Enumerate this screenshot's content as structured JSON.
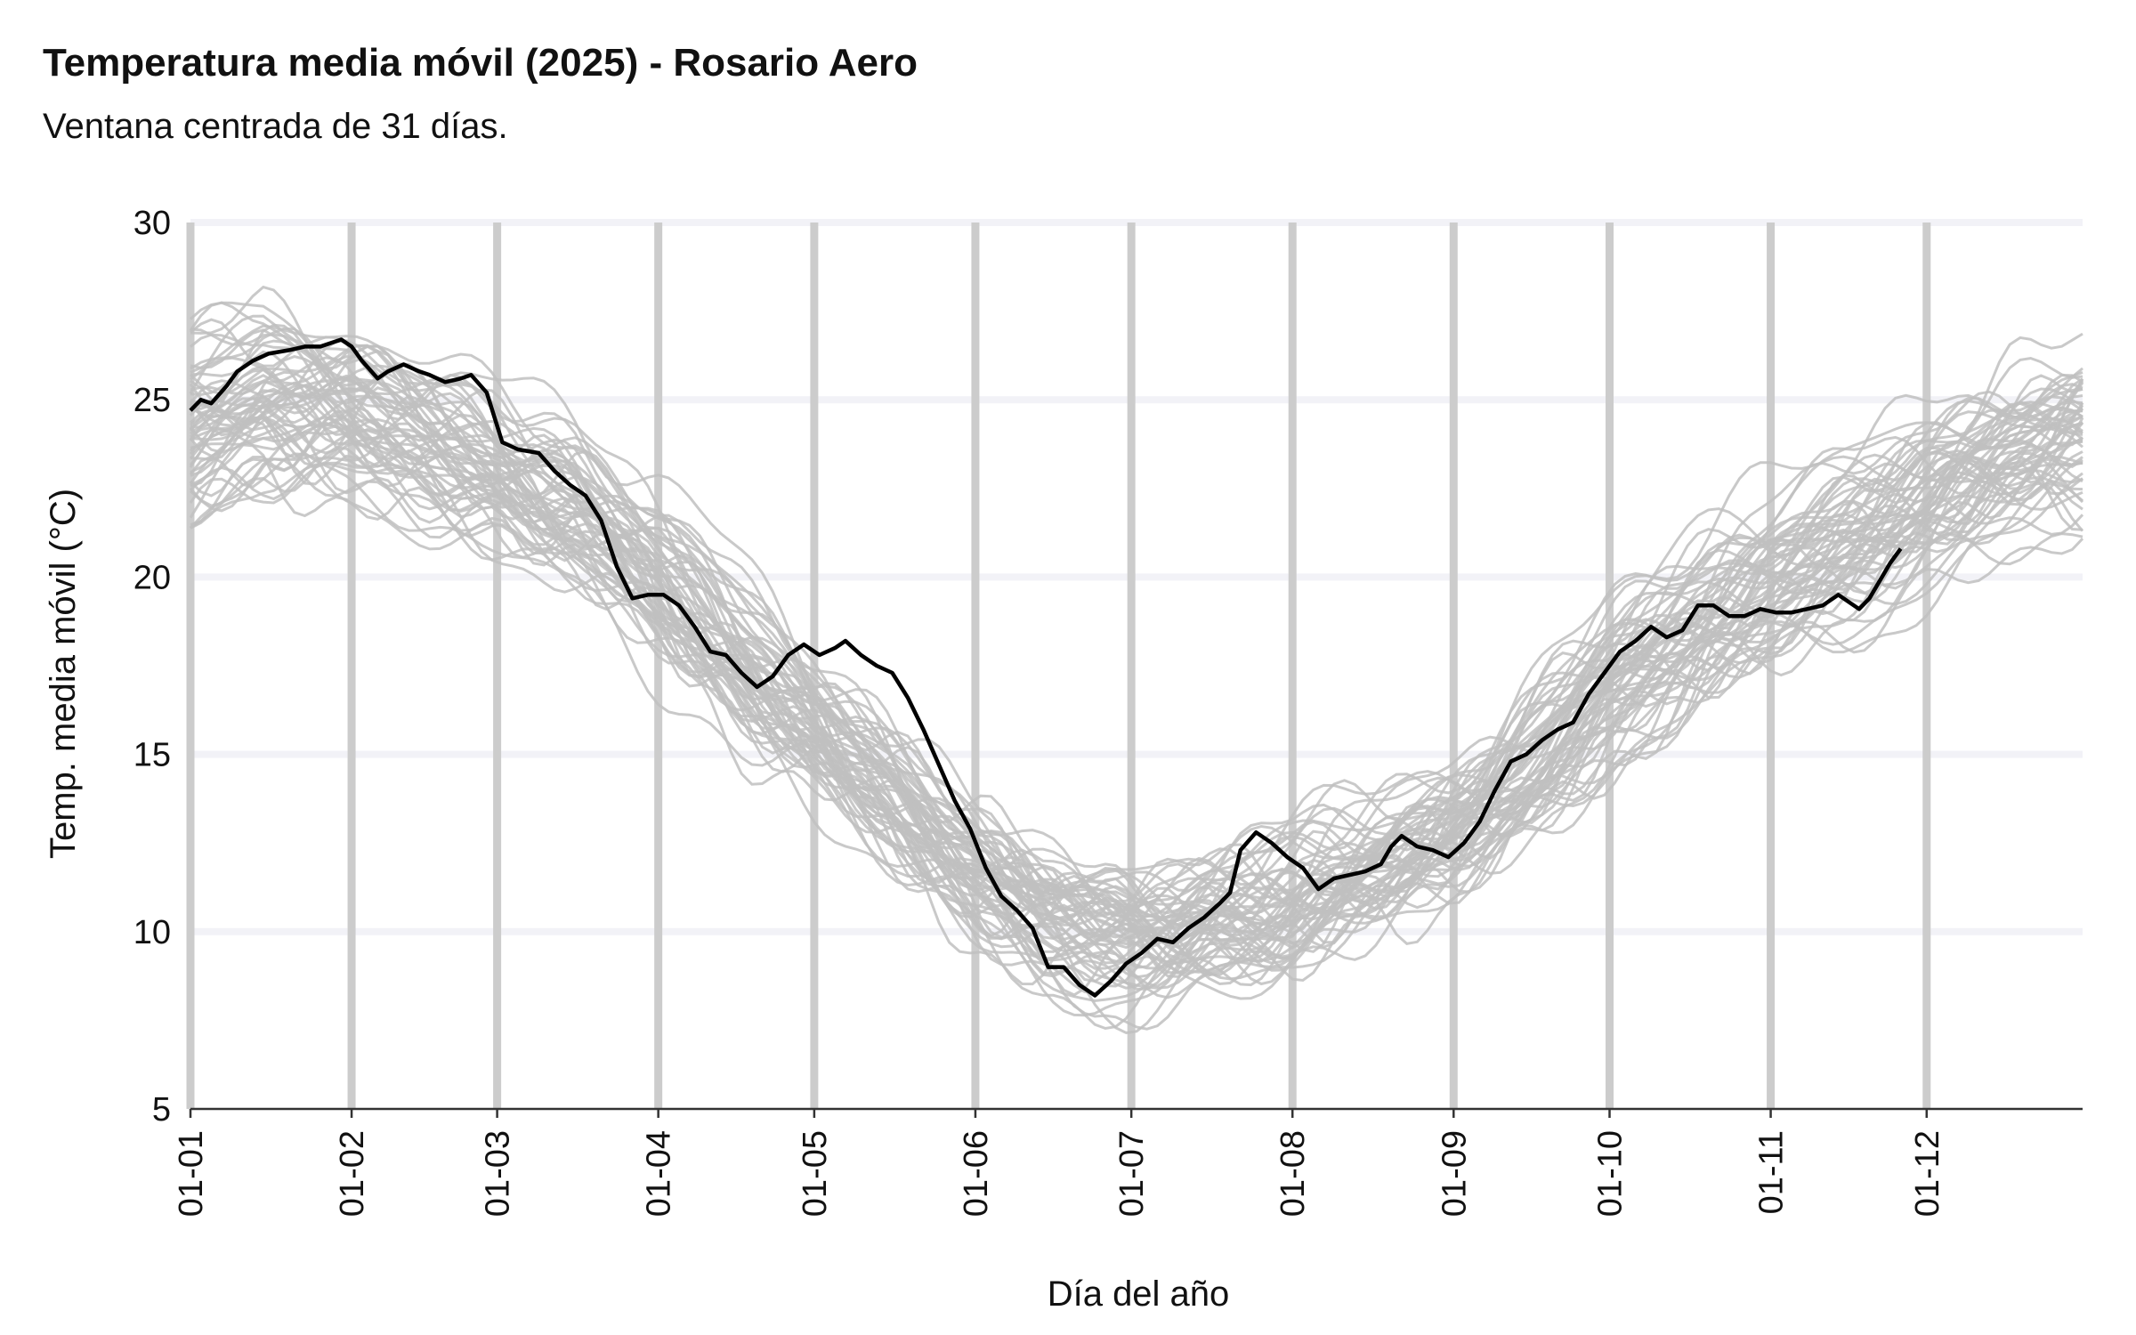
{
  "chart_data": {
    "type": "line",
    "title": "Temperatura media móvil (2025) - Rosario Aero",
    "subtitle": "Ventana centrada de 31 días.",
    "xlabel": "Día del año",
    "ylabel": "Temp. media móvil (°C)",
    "ylim": [
      5,
      30
    ],
    "yticks": [
      5,
      10,
      15,
      20,
      25,
      30
    ],
    "xlim": [
      1,
      365
    ],
    "x_ticks": [
      {
        "label": "01-01",
        "day": 1
      },
      {
        "label": "01-02",
        "day": 32
      },
      {
        "label": "01-03",
        "day": 60
      },
      {
        "label": "01-04",
        "day": 91
      },
      {
        "label": "01-05",
        "day": 121
      },
      {
        "label": "01-06",
        "day": 152
      },
      {
        "label": "01-07",
        "day": 182
      },
      {
        "label": "01-08",
        "day": 213
      },
      {
        "label": "01-09",
        "day": 244
      },
      {
        "label": "01-10",
        "day": 274
      },
      {
        "label": "01-11",
        "day": 305
      },
      {
        "label": "01-12",
        "day": 335
      }
    ],
    "grid": true,
    "colors": {
      "history": "#c0c0c0",
      "current": "#000000",
      "grid_major_x": "#cccccc",
      "grid_y": "#f2f2f7",
      "axis": "#333333"
    },
    "history_climatology": {
      "days": [
        1,
        15,
        32,
        45,
        60,
        75,
        91,
        105,
        121,
        135,
        152,
        165,
        175,
        182,
        190,
        200,
        213,
        225,
        244,
        260,
        274,
        290,
        305,
        320,
        335,
        350,
        365
      ],
      "values": [
        24.0,
        24.8,
        24.4,
        23.7,
        22.9,
        21.7,
        19.8,
        18.0,
        15.8,
        14.0,
        11.6,
        10.3,
        9.7,
        9.6,
        9.7,
        10.1,
        10.7,
        11.6,
        13.1,
        14.8,
        16.6,
        18.3,
        19.6,
        20.8,
        22.0,
        23.2,
        24.0
      ],
      "year_count": 60
    },
    "series": [
      {
        "values": [
          [
            1,
            24.7
          ],
          [
            3,
            25.0
          ],
          [
            5,
            24.9
          ],
          [
            8,
            25.4
          ],
          [
            10,
            25.8
          ],
          [
            13,
            26.1
          ],
          [
            16,
            26.3
          ],
          [
            20,
            26.4
          ],
          [
            23,
            26.5
          ],
          [
            26,
            26.5
          ],
          [
            30,
            26.7
          ],
          [
            32,
            26.5
          ],
          [
            34,
            26.1
          ],
          [
            37,
            25.6
          ],
          [
            39,
            25.8
          ],
          [
            42,
            26.0
          ],
          [
            45,
            25.8
          ],
          [
            47,
            25.7
          ],
          [
            50,
            25.5
          ],
          [
            53,
            25.6
          ],
          [
            55,
            25.7
          ],
          [
            58,
            25.2
          ],
          [
            61,
            23.8
          ],
          [
            64,
            23.6
          ],
          [
            68,
            23.5
          ],
          [
            71,
            23.0
          ],
          [
            74,
            22.6
          ],
          [
            77,
            22.3
          ],
          [
            80,
            21.6
          ],
          [
            83,
            20.3
          ],
          [
            86,
            19.4
          ],
          [
            89,
            19.5
          ],
          [
            92,
            19.5
          ],
          [
            95,
            19.2
          ],
          [
            98,
            18.6
          ],
          [
            101,
            17.9
          ],
          [
            104,
            17.8
          ],
          [
            107,
            17.3
          ],
          [
            110,
            16.9
          ],
          [
            113,
            17.2
          ],
          [
            116,
            17.8
          ],
          [
            119,
            18.1
          ],
          [
            122,
            17.8
          ],
          [
            125,
            18.0
          ],
          [
            127,
            18.2
          ],
          [
            130,
            17.8
          ],
          [
            133,
            17.5
          ],
          [
            136,
            17.3
          ],
          [
            139,
            16.6
          ],
          [
            142,
            15.7
          ],
          [
            145,
            14.7
          ],
          [
            148,
            13.7
          ],
          [
            151,
            12.9
          ],
          [
            154,
            11.8
          ],
          [
            157,
            11.0
          ],
          [
            160,
            10.6
          ],
          [
            163,
            10.1
          ],
          [
            166,
            9.0
          ],
          [
            169,
            9.0
          ],
          [
            172,
            8.5
          ],
          [
            175,
            8.2
          ],
          [
            178,
            8.6
          ],
          [
            181,
            9.1
          ],
          [
            184,
            9.4
          ],
          [
            187,
            9.8
          ],
          [
            190,
            9.7
          ],
          [
            193,
            10.1
          ],
          [
            196,
            10.4
          ],
          [
            199,
            10.8
          ],
          [
            201,
            11.1
          ],
          [
            203,
            12.3
          ],
          [
            206,
            12.8
          ],
          [
            209,
            12.5
          ],
          [
            212,
            12.1
          ],
          [
            215,
            11.8
          ],
          [
            218,
            11.2
          ],
          [
            221,
            11.5
          ],
          [
            224,
            11.6
          ],
          [
            227,
            11.7
          ],
          [
            230,
            11.9
          ],
          [
            232,
            12.4
          ],
          [
            234,
            12.7
          ],
          [
            237,
            12.4
          ],
          [
            240,
            12.3
          ],
          [
            243,
            12.1
          ],
          [
            246,
            12.5
          ],
          [
            249,
            13.1
          ],
          [
            252,
            14.0
          ],
          [
            255,
            14.8
          ],
          [
            258,
            15.0
          ],
          [
            261,
            15.4
          ],
          [
            264,
            15.7
          ],
          [
            267,
            15.9
          ],
          [
            270,
            16.7
          ],
          [
            273,
            17.3
          ],
          [
            276,
            17.9
          ],
          [
            279,
            18.2
          ],
          [
            282,
            18.6
          ],
          [
            285,
            18.3
          ],
          [
            288,
            18.5
          ],
          [
            291,
            19.2
          ],
          [
            294,
            19.2
          ],
          [
            297,
            18.9
          ],
          [
            300,
            18.9
          ],
          [
            303,
            19.1
          ],
          [
            306,
            19.0
          ],
          [
            309,
            19.0
          ],
          [
            312,
            19.1
          ],
          [
            315,
            19.2
          ],
          [
            318,
            19.5
          ],
          [
            320,
            19.3
          ],
          [
            322,
            19.1
          ],
          [
            324,
            19.4
          ],
          [
            326,
            19.9
          ],
          [
            328,
            20.4
          ],
          [
            330,
            20.8
          ]
        ]
      }
    ]
  }
}
